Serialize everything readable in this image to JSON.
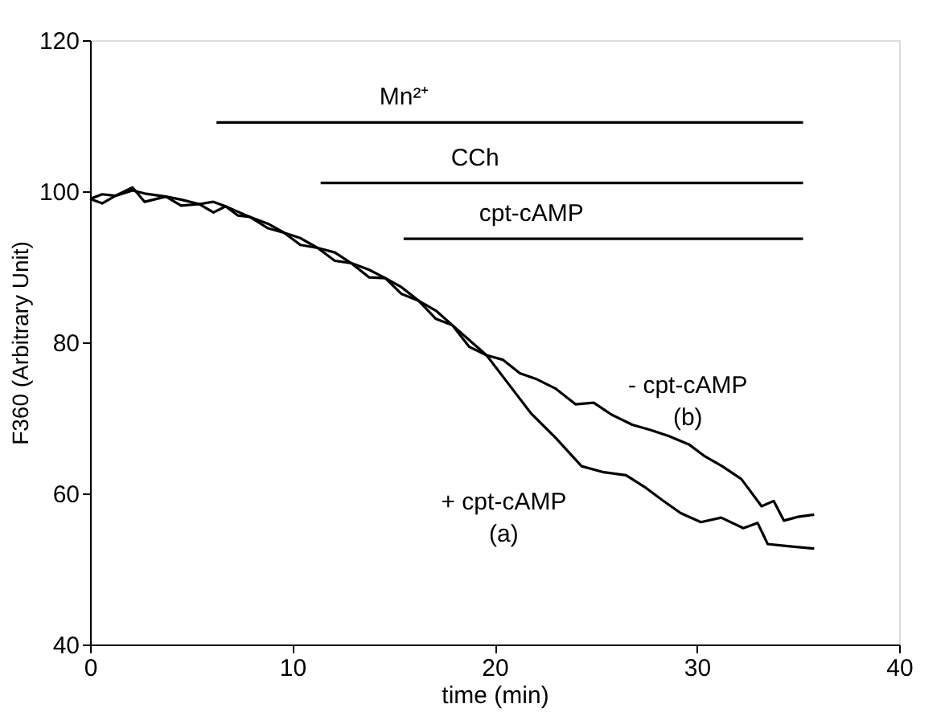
{
  "chart_data": {
    "type": "line",
    "xlabel": "time (min)",
    "ylabel": "F360 (Arbitrary Unit)",
    "xlim": [
      0,
      40
    ],
    "xticks": [
      0,
      10,
      20,
      30,
      40
    ],
    "ylim": [
      40,
      120
    ],
    "yticks": [
      40,
      60,
      80,
      100,
      120
    ],
    "grid": false,
    "legend": false,
    "marker": "none",
    "line_style": "solid",
    "series": [
      {
        "name": "+ cpt-cAMP (a)",
        "color": "#000000",
        "x": [
          0,
          0.6,
          1.25,
          2.1,
          2.7,
          3.75,
          4.5,
          5.4,
          6.1,
          6.7,
          7.3,
          7.9,
          8.8,
          9.6,
          10.4,
          11.25,
          12.1,
          12.9,
          13.8,
          14.6,
          15.4,
          16.25,
          17.1,
          17.9,
          18.75,
          19.6,
          20.6,
          21.8,
          23,
          24.3,
          25.4,
          26.5,
          27.5,
          28.3,
          29.2,
          30.2,
          31.2,
          32.3,
          33,
          33.5,
          34.6,
          35.8
        ],
        "values": [
          99,
          98.4,
          99.4,
          100.5,
          98.6,
          99.3,
          98.1,
          98.3,
          97.2,
          98,
          96.8,
          96.6,
          95.7,
          94.5,
          93.8,
          92.5,
          91.9,
          90.5,
          89.6,
          88.5,
          87.3,
          85.5,
          84.2,
          82.3,
          80.3,
          78.3,
          74.8,
          70.6,
          67.4,
          63.6,
          62.8,
          62.4,
          60.7,
          59.1,
          57.4,
          56.2,
          56.8,
          55.4,
          56.1,
          53.3,
          53.0,
          52.7
        ]
      },
      {
        "name": "- cpt-cAMP (b)",
        "color": "#000000",
        "x": [
          0,
          0.6,
          1.25,
          2.1,
          2.7,
          3.75,
          4.5,
          5.4,
          6.1,
          6.7,
          7.3,
          7.9,
          8.8,
          9.6,
          10.4,
          11.25,
          12.1,
          12.9,
          13.8,
          14.6,
          15.4,
          16.25,
          17.1,
          17.9,
          18.75,
          19.6,
          20.4,
          21.25,
          22.1,
          23,
          24,
          24.9,
          25.8,
          26.8,
          27.7,
          28.6,
          29.6,
          30.4,
          31.25,
          32.2,
          33.2,
          33.8,
          34.3,
          35,
          35.8
        ],
        "values": [
          99,
          99.6,
          99.4,
          100.1,
          99.7,
          99.3,
          98.9,
          98.3,
          98.6,
          98,
          97.3,
          96.6,
          95.1,
          94.5,
          92.9,
          92.5,
          90.8,
          90.5,
          88.6,
          88.5,
          86.4,
          85.5,
          83.1,
          82.3,
          79.4,
          78.3,
          77.7,
          75.9,
          75.1,
          73.9,
          71.8,
          72.0,
          70.4,
          69.1,
          68.4,
          67.6,
          66.5,
          64.9,
          63.6,
          61.9,
          58.3,
          59.0,
          56.4,
          56.9,
          57.2
        ]
      },
      {
        "name": "Mn²⁺",
        "color": "#000000",
        "x": [
          6.25,
          35.25
        ],
        "values": [
          109.1,
          109.1
        ]
      },
      {
        "name": "CCh",
        "color": "#000000",
        "x": [
          11.4,
          35.25
        ],
        "values": [
          101.1,
          101.1
        ]
      },
      {
        "name": "cpt-cAMP",
        "color": "#000000",
        "x": [
          15.5,
          35.25
        ],
        "values": [
          93.7,
          93.7
        ]
      }
    ]
  }
}
